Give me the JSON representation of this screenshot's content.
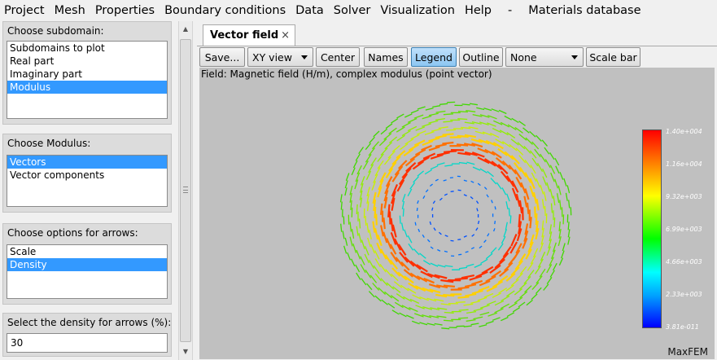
{
  "menu": [
    "Project",
    "Mesh",
    "Properties",
    "Boundary conditions",
    "Data",
    "Solver",
    "Visualization",
    "Help",
    "-",
    "Materials database"
  ],
  "left": {
    "subdomain": {
      "title": "Choose subdomain:",
      "items": [
        "Subdomains to plot",
        "Real part",
        "Imaginary part",
        "Modulus"
      ],
      "selected_label": "Modulus"
    },
    "modulus": {
      "title": "Choose Modulus:",
      "items": [
        "Vectors",
        "Vector components"
      ],
      "selected_label": "Vectors"
    },
    "arrows": {
      "title": "Choose options for arrows:",
      "items": [
        "Scale",
        "Density"
      ],
      "selected_label": "Density"
    },
    "density": {
      "title": "Select the density for arrows (%):",
      "value": "30"
    }
  },
  "tab": {
    "label": "Vector field",
    "close_glyph": "×"
  },
  "toolbar": {
    "save": "Save...",
    "view": "XY view",
    "center": "Center",
    "names": "Names",
    "legend": "Legend",
    "outline": "Outline",
    "none_select": "None",
    "scalebar": "Scale bar"
  },
  "plot": {
    "field_label": "Field: Magnetic field (H/m), complex modulus (point vector)",
    "brand": "MaxFEM",
    "ticks": [
      "1.40e+004",
      "1.16e+004",
      "9.32e+003",
      "6.99e+003",
      "4.66e+003",
      "2.33e+003",
      "3.81e-011"
    ]
  },
  "colors": {
    "selection": "#3399ff",
    "plot_bg": "#c0c0c0",
    "active_button": "#8cc6f2"
  }
}
